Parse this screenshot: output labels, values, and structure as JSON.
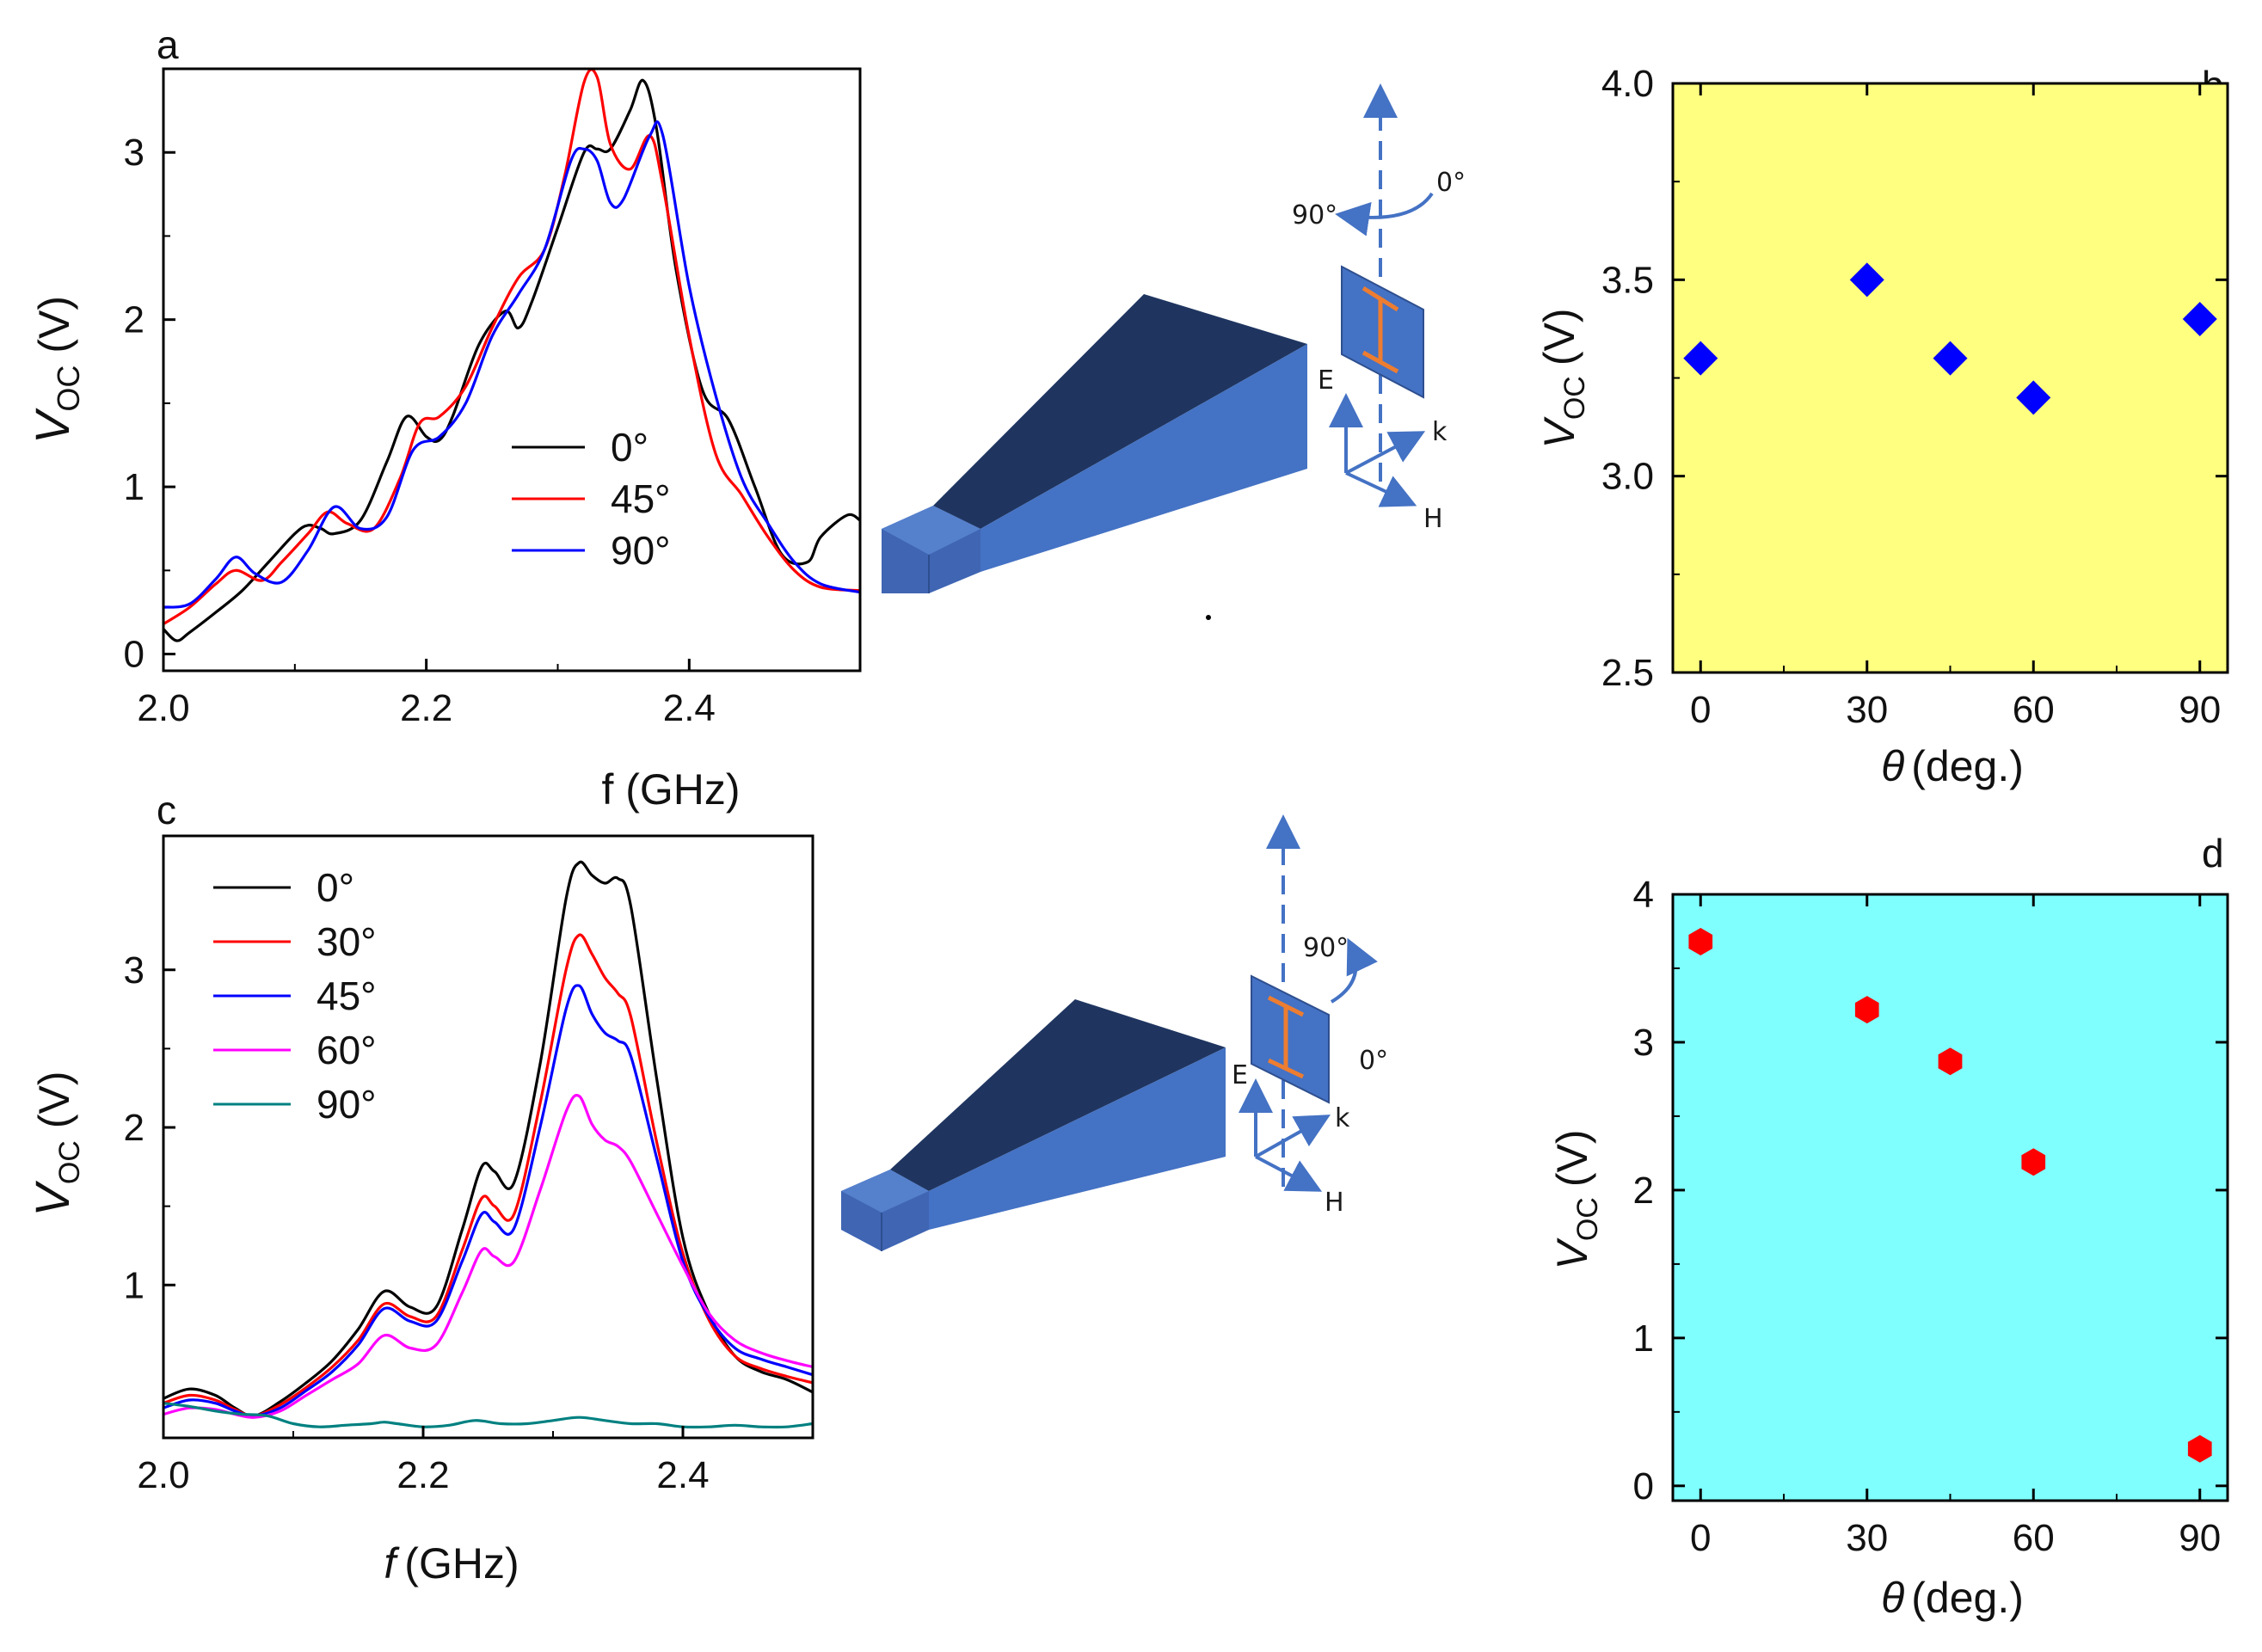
{
  "chart_data": [
    {
      "panel": "a",
      "type": "line",
      "xlabel": "f (GHz)",
      "ylabel_main": "V",
      "ylabel_sub": "OC",
      "ylabel_unit": "(V)",
      "xlim": [
        2.0,
        2.53
      ],
      "ylim": [
        -0.1,
        3.5
      ],
      "xticks": [
        "2.0",
        "2.2",
        "2.4"
      ],
      "xtick_values": [
        2.0,
        2.2,
        2.4
      ],
      "yticks": [
        "0",
        "1",
        "2",
        "3"
      ],
      "ytick_values": [
        0,
        1,
        2,
        3
      ],
      "legend_position": "center-right",
      "series": [
        {
          "name": "0°",
          "color": "#000000",
          "x": [
            2.0,
            2.01,
            2.02,
            2.04,
            2.06,
            2.08,
            2.1,
            2.11,
            2.12,
            2.13,
            2.15,
            2.17,
            2.185,
            2.2,
            2.21,
            2.22,
            2.24,
            2.26,
            2.27,
            2.28,
            2.3,
            2.32,
            2.33,
            2.34,
            2.355,
            2.365,
            2.375,
            2.39,
            2.41,
            2.43,
            2.45,
            2.47,
            2.49,
            2.5,
            2.52,
            2.53
          ],
          "y": [
            0.15,
            0.08,
            0.13,
            0.25,
            0.38,
            0.55,
            0.72,
            0.77,
            0.75,
            0.72,
            0.8,
            1.15,
            1.42,
            1.3,
            1.28,
            1.42,
            1.85,
            2.05,
            1.95,
            2.1,
            2.55,
            3.0,
            3.02,
            3.02,
            3.25,
            3.43,
            3.15,
            2.3,
            1.58,
            1.4,
            1.0,
            0.6,
            0.55,
            0.7,
            0.83,
            0.8
          ]
        },
        {
          "name": "45°",
          "color": "#ff0000",
          "x": [
            2.0,
            2.02,
            2.04,
            2.055,
            2.075,
            2.09,
            2.11,
            2.125,
            2.14,
            2.16,
            2.18,
            2.195,
            2.21,
            2.23,
            2.25,
            2.27,
            2.29,
            2.305,
            2.32,
            2.33,
            2.34,
            2.355,
            2.37,
            2.38,
            2.4,
            2.42,
            2.44,
            2.46,
            2.48,
            2.5,
            2.53
          ],
          "y": [
            0.18,
            0.28,
            0.42,
            0.5,
            0.44,
            0.55,
            0.72,
            0.85,
            0.78,
            0.75,
            1.05,
            1.38,
            1.42,
            1.6,
            1.95,
            2.25,
            2.42,
            2.85,
            3.42,
            3.45,
            3.05,
            2.9,
            3.1,
            2.8,
            1.9,
            1.2,
            0.95,
            0.7,
            0.5,
            0.4,
            0.38
          ]
        },
        {
          "name": "90°",
          "color": "#0000ff",
          "x": [
            2.0,
            2.02,
            2.04,
            2.055,
            2.07,
            2.09,
            2.11,
            2.13,
            2.15,
            2.17,
            2.19,
            2.21,
            2.23,
            2.25,
            2.27,
            2.29,
            2.31,
            2.32,
            2.33,
            2.34,
            2.35,
            2.37,
            2.38,
            2.4,
            2.42,
            2.44,
            2.46,
            2.48,
            2.5,
            2.53
          ],
          "y": [
            0.28,
            0.3,
            0.45,
            0.58,
            0.48,
            0.43,
            0.62,
            0.88,
            0.75,
            0.82,
            1.22,
            1.3,
            1.5,
            1.9,
            2.15,
            2.42,
            2.95,
            3.02,
            2.95,
            2.7,
            2.72,
            3.1,
            3.1,
            2.2,
            1.55,
            1.05,
            0.78,
            0.55,
            0.42,
            0.37
          ]
        }
      ]
    },
    {
      "panel": "b",
      "type": "scatter",
      "xlabel_symbol": "θ",
      "xlabel_rest": "(deg.)",
      "ylabel_main": "V",
      "ylabel_sub": "OC",
      "ylabel_unit": "(V)",
      "xlim": [
        -5,
        95
      ],
      "ylim": [
        2.5,
        4.0
      ],
      "xticks": [
        "0",
        "30",
        "60",
        "90"
      ],
      "xtick_values": [
        0,
        30,
        60,
        90
      ],
      "yticks": [
        "2.5",
        "3.0",
        "3.5",
        "4.0"
      ],
      "ytick_values": [
        2.5,
        3.0,
        3.5,
        4.0
      ],
      "background": "#ffff80",
      "marker": "diamond",
      "marker_color": "#0000ff",
      "x": [
        0,
        30,
        45,
        60,
        90
      ],
      "y": [
        3.3,
        3.5,
        3.3,
        3.2,
        3.4
      ]
    },
    {
      "panel": "c",
      "type": "line",
      "xlabel_symbol": "f",
      "xlabel_rest": "(GHz)",
      "ylabel_main": "V",
      "ylabel_sub": "OC",
      "ylabel_unit": "(V)",
      "xlim": [
        2.0,
        2.5
      ],
      "ylim": [
        0.03,
        3.85
      ],
      "xticks": [
        "2.0",
        "2.2",
        "2.4"
      ],
      "xtick_values": [
        2.0,
        2.2,
        2.4
      ],
      "yticks": [
        "1",
        "2",
        "3"
      ],
      "ytick_values": [
        1,
        2,
        3
      ],
      "legend_position": "top-left",
      "series": [
        {
          "name": "0°",
          "color": "#000000",
          "x": [
            2.0,
            2.02,
            2.04,
            2.055,
            2.07,
            2.09,
            2.11,
            2.13,
            2.15,
            2.17,
            2.19,
            2.21,
            2.23,
            2.245,
            2.255,
            2.27,
            2.29,
            2.31,
            2.32,
            2.33,
            2.34,
            2.35,
            2.36,
            2.38,
            2.4,
            2.42,
            2.44,
            2.46,
            2.48,
            2.5
          ],
          "y": [
            0.28,
            0.34,
            0.3,
            0.22,
            0.17,
            0.26,
            0.38,
            0.52,
            0.72,
            0.96,
            0.86,
            0.86,
            1.35,
            1.75,
            1.72,
            1.65,
            2.4,
            3.45,
            3.68,
            3.6,
            3.55,
            3.58,
            3.4,
            2.3,
            1.3,
            0.82,
            0.55,
            0.45,
            0.4,
            0.32
          ]
        },
        {
          "name": "30°",
          "color": "#ff0000",
          "x": [
            2.0,
            2.02,
            2.04,
            2.055,
            2.07,
            2.09,
            2.11,
            2.13,
            2.15,
            2.17,
            2.19,
            2.21,
            2.23,
            2.245,
            2.255,
            2.27,
            2.29,
            2.31,
            2.32,
            2.33,
            2.34,
            2.35,
            2.36,
            2.38,
            2.4,
            2.42,
            2.44,
            2.46,
            2.48,
            2.5
          ],
          "y": [
            0.25,
            0.3,
            0.27,
            0.21,
            0.17,
            0.24,
            0.35,
            0.48,
            0.65,
            0.88,
            0.8,
            0.8,
            1.22,
            1.55,
            1.5,
            1.45,
            2.15,
            3.0,
            3.22,
            3.1,
            2.95,
            2.85,
            2.7,
            1.9,
            1.2,
            0.78,
            0.55,
            0.47,
            0.42,
            0.38
          ]
        },
        {
          "name": "45°",
          "color": "#0000ff",
          "x": [
            2.0,
            2.02,
            2.04,
            2.055,
            2.07,
            2.09,
            2.11,
            2.13,
            2.15,
            2.17,
            2.19,
            2.21,
            2.23,
            2.245,
            2.255,
            2.27,
            2.29,
            2.31,
            2.32,
            2.33,
            2.34,
            2.35,
            2.36,
            2.38,
            2.4,
            2.42,
            2.44,
            2.46,
            2.48,
            2.5
          ],
          "y": [
            0.22,
            0.27,
            0.25,
            0.2,
            0.17,
            0.22,
            0.33,
            0.45,
            0.62,
            0.85,
            0.77,
            0.77,
            1.15,
            1.45,
            1.4,
            1.36,
            2.0,
            2.75,
            2.9,
            2.72,
            2.6,
            2.55,
            2.45,
            1.8,
            1.15,
            0.8,
            0.6,
            0.53,
            0.48,
            0.43
          ]
        },
        {
          "name": "60°",
          "color": "#ff00ff",
          "x": [
            2.0,
            2.02,
            2.04,
            2.055,
            2.07,
            2.09,
            2.11,
            2.13,
            2.15,
            2.17,
            2.19,
            2.21,
            2.23,
            2.245,
            2.255,
            2.27,
            2.29,
            2.31,
            2.32,
            2.33,
            2.34,
            2.35,
            2.36,
            2.38,
            2.4,
            2.42,
            2.44,
            2.46,
            2.48,
            2.5
          ],
          "y": [
            0.18,
            0.22,
            0.21,
            0.18,
            0.16,
            0.2,
            0.3,
            0.4,
            0.5,
            0.68,
            0.6,
            0.62,
            0.95,
            1.22,
            1.18,
            1.15,
            1.6,
            2.1,
            2.2,
            2.02,
            1.92,
            1.88,
            1.78,
            1.45,
            1.12,
            0.82,
            0.65,
            0.57,
            0.52,
            0.48
          ]
        },
        {
          "name": "90°",
          "color": "#008080",
          "x": [
            2.0,
            2.02,
            2.04,
            2.06,
            2.08,
            2.1,
            2.12,
            2.14,
            2.16,
            2.17,
            2.18,
            2.2,
            2.22,
            2.24,
            2.26,
            2.28,
            2.3,
            2.32,
            2.34,
            2.36,
            2.38,
            2.4,
            2.42,
            2.44,
            2.46,
            2.48,
            2.5
          ],
          "y": [
            0.25,
            0.23,
            0.2,
            0.18,
            0.17,
            0.12,
            0.1,
            0.11,
            0.12,
            0.13,
            0.12,
            0.1,
            0.11,
            0.14,
            0.12,
            0.12,
            0.14,
            0.16,
            0.14,
            0.12,
            0.12,
            0.1,
            0.1,
            0.11,
            0.1,
            0.1,
            0.12
          ]
        }
      ]
    },
    {
      "panel": "d",
      "type": "scatter",
      "xlabel_symbol": "θ",
      "xlabel_rest": "(deg.)",
      "ylabel_main": "V",
      "ylabel_sub": "OC",
      "ylabel_unit": "(V)",
      "xlim": [
        -5,
        95
      ],
      "ylim": [
        -0.1,
        4.0
      ],
      "xticks": [
        "0",
        "30",
        "60",
        "90"
      ],
      "xtick_values": [
        0,
        30,
        60,
        90
      ],
      "yticks": [
        "0",
        "1",
        "2",
        "3",
        "4"
      ],
      "ytick_values": [
        0,
        1,
        2,
        3,
        4
      ],
      "background": "#80ffff",
      "marker": "hexagon",
      "marker_color": "#ff0000",
      "x": [
        0,
        30,
        45,
        60,
        90
      ],
      "y": [
        3.68,
        3.22,
        2.87,
        2.19,
        0.25
      ]
    }
  ],
  "diagrams": [
    {
      "angle_a": "90°",
      "angle_b": "0°",
      "e_label": "E",
      "k_label": "k",
      "h_label": "H"
    },
    {
      "angle_a": "90°",
      "angle_b": "0°",
      "e_label": "E",
      "k_label": "k",
      "h_label": "H"
    }
  ]
}
